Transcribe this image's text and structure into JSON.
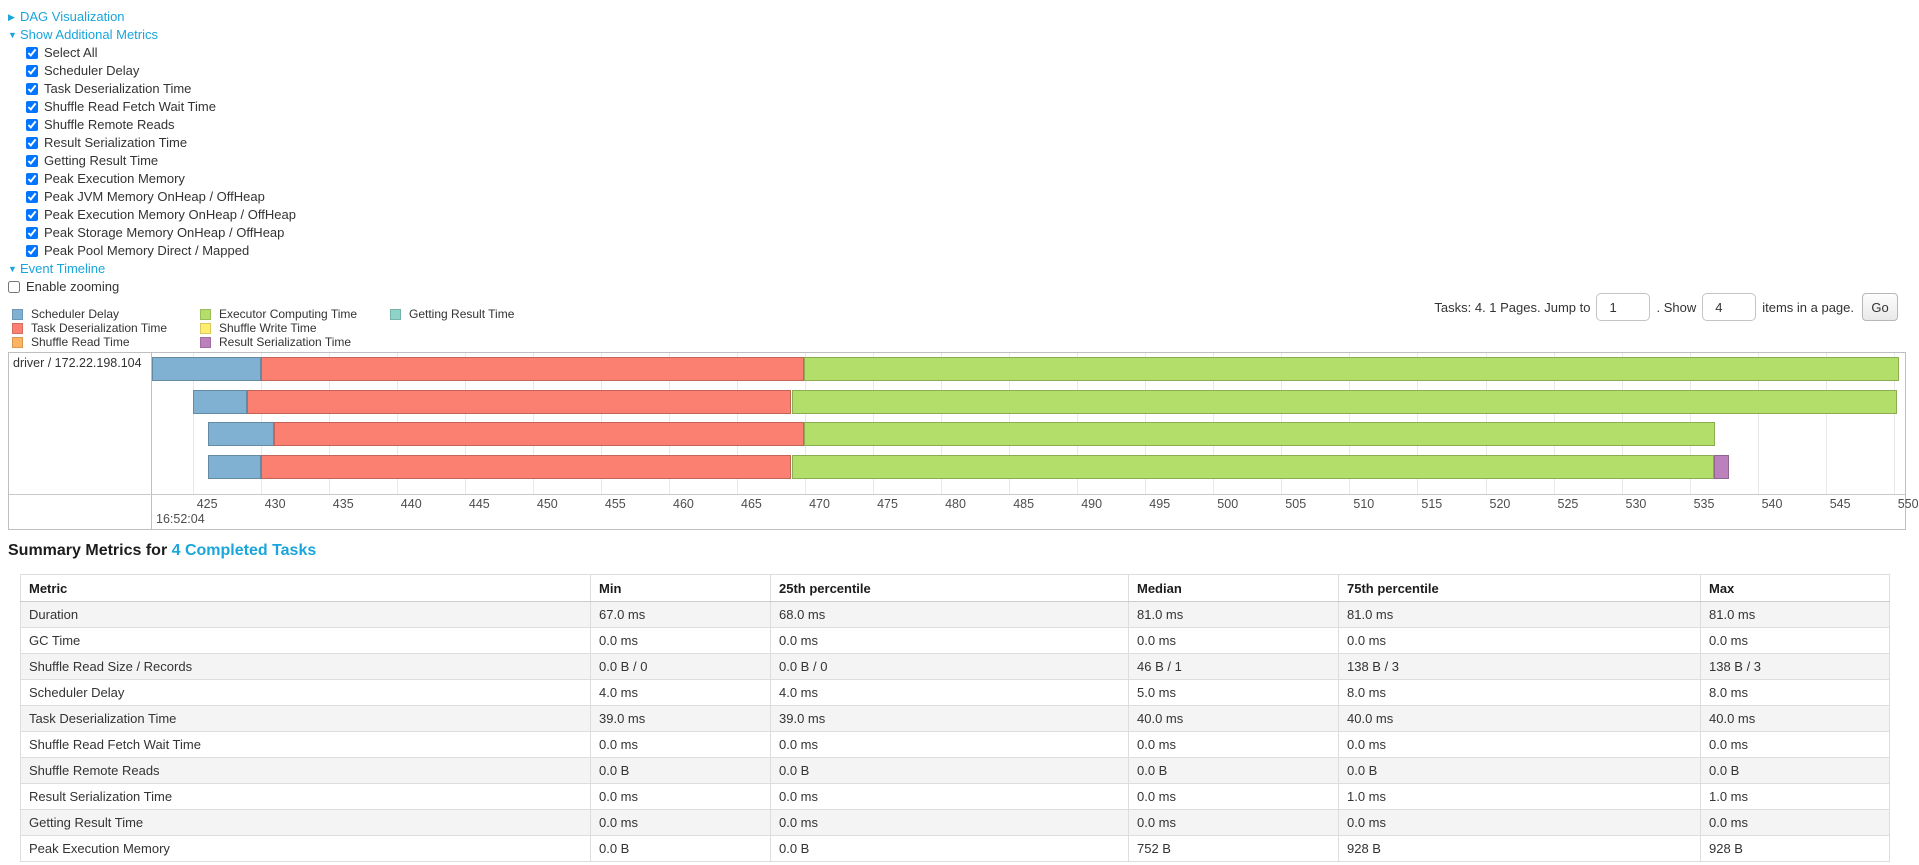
{
  "colors": {
    "link": "#1aa5dc",
    "scheduler_delay": "#80B1D3",
    "task_deserialization": "#FB8072",
    "shuffle_read": "#FDB462",
    "executor_computing": "#B3DE69",
    "shuffle_write": "#FFED6F",
    "result_serialization": "#BC80BD",
    "getting_result": "#8DD3C7"
  },
  "controls": {
    "dag": {
      "label": "DAG Visualization",
      "state": "collapsed"
    },
    "additional_metrics": {
      "label": "Show Additional Metrics",
      "state": "expanded"
    },
    "metric_checkboxes": [
      {
        "label": "Select All",
        "checked": true
      },
      {
        "label": "Scheduler Delay",
        "checked": true
      },
      {
        "label": "Task Deserialization Time",
        "checked": true
      },
      {
        "label": "Shuffle Read Fetch Wait Time",
        "checked": true
      },
      {
        "label": "Shuffle Remote Reads",
        "checked": true
      },
      {
        "label": "Result Serialization Time",
        "checked": true
      },
      {
        "label": "Getting Result Time",
        "checked": true
      },
      {
        "label": "Peak Execution Memory",
        "checked": true
      },
      {
        "label": "Peak JVM Memory OnHeap / OffHeap",
        "checked": true
      },
      {
        "label": "Peak Execution Memory OnHeap / OffHeap",
        "checked": true
      },
      {
        "label": "Peak Storage Memory OnHeap / OffHeap",
        "checked": true
      },
      {
        "label": "Peak Pool Memory Direct / Mapped",
        "checked": true
      }
    ],
    "event_timeline": {
      "label": "Event Timeline",
      "state": "expanded"
    },
    "enable_zooming": {
      "label": "Enable zooming",
      "checked": false
    }
  },
  "legend": {
    "columns": [
      [
        {
          "key": "scheduler_delay",
          "label": "Scheduler Delay"
        },
        {
          "key": "task_deserialization",
          "label": "Task Deserialization Time"
        },
        {
          "key": "shuffle_read",
          "label": "Shuffle Read Time"
        }
      ],
      [
        {
          "key": "executor_computing",
          "label": "Executor Computing Time"
        },
        {
          "key": "shuffle_write",
          "label": "Shuffle Write Time"
        },
        {
          "key": "result_serialization",
          "label": "Result Serialization Time"
        }
      ],
      [
        {
          "key": "getting_result",
          "label": "Getting Result Time"
        }
      ]
    ]
  },
  "pagination": {
    "tasks_label": "Tasks: 4. 1 Pages. Jump to",
    "jump_value": "1",
    "show_label": ". Show",
    "show_value": "4",
    "items_label": "items in a page.",
    "go_label": "Go"
  },
  "chart_data": {
    "type": "timeline",
    "title": "Event Timeline",
    "group_label": "driver / 172.22.198.104",
    "time_unit": "milliseconds within second 16:52:04",
    "axis": {
      "ticks": [
        425,
        430,
        435,
        440,
        445,
        450,
        455,
        460,
        465,
        470,
        475,
        480,
        485,
        490,
        495,
        500,
        505,
        510,
        515,
        520,
        525,
        530,
        535,
        540,
        545,
        550
      ],
      "tick_step_ms": 5,
      "major_label": "16:52:04",
      "visible_range_ms": [
        422,
        550.8
      ]
    },
    "tasks": [
      {
        "start": 422.0,
        "segments": [
          {
            "key": "scheduler_delay",
            "end": 430.0
          },
          {
            "key": "task_deserialization",
            "end": 469.9
          },
          {
            "key": "executor_computing",
            "end": 550.4
          }
        ]
      },
      {
        "start": 425.0,
        "segments": [
          {
            "key": "scheduler_delay",
            "end": 429.0
          },
          {
            "key": "task_deserialization",
            "end": 469.0
          },
          {
            "key": "executor_computing",
            "end": 550.2
          }
        ]
      },
      {
        "start": 426.1,
        "segments": [
          {
            "key": "scheduler_delay",
            "end": 431.0
          },
          {
            "key": "task_deserialization",
            "end": 469.9
          },
          {
            "key": "executor_computing",
            "end": 536.9
          }
        ]
      },
      {
        "start": 426.1,
        "segments": [
          {
            "key": "scheduler_delay",
            "end": 430.0
          },
          {
            "key": "task_deserialization",
            "end": 469.0
          },
          {
            "key": "executor_computing",
            "end": 536.8
          },
          {
            "key": "result_serialization",
            "end": 537.9
          }
        ]
      }
    ]
  },
  "summary": {
    "heading_prefix": "Summary Metrics for ",
    "heading_link": "4 Completed Tasks",
    "columns": [
      "Metric",
      "Min",
      "25th percentile",
      "Median",
      "75th percentile",
      "Max"
    ],
    "rows": [
      [
        "Duration",
        "67.0 ms",
        "68.0 ms",
        "81.0 ms",
        "81.0 ms",
        "81.0 ms"
      ],
      [
        "GC Time",
        "0.0 ms",
        "0.0 ms",
        "0.0 ms",
        "0.0 ms",
        "0.0 ms"
      ],
      [
        "Shuffle Read Size / Records",
        "0.0 B / 0",
        "0.0 B / 0",
        "46 B / 1",
        "138 B / 3",
        "138 B / 3"
      ],
      [
        "Scheduler Delay",
        "4.0 ms",
        "4.0 ms",
        "5.0 ms",
        "8.0 ms",
        "8.0 ms"
      ],
      [
        "Task Deserialization Time",
        "39.0 ms",
        "39.0 ms",
        "40.0 ms",
        "40.0 ms",
        "40.0 ms"
      ],
      [
        "Shuffle Read Fetch Wait Time",
        "0.0 ms",
        "0.0 ms",
        "0.0 ms",
        "0.0 ms",
        "0.0 ms"
      ],
      [
        "Shuffle Remote Reads",
        "0.0 B",
        "0.0 B",
        "0.0 B",
        "0.0 B",
        "0.0 B"
      ],
      [
        "Result Serialization Time",
        "0.0 ms",
        "0.0 ms",
        "0.0 ms",
        "1.0 ms",
        "1.0 ms"
      ],
      [
        "Getting Result Time",
        "0.0 ms",
        "0.0 ms",
        "0.0 ms",
        "0.0 ms",
        "0.0 ms"
      ],
      [
        "Peak Execution Memory",
        "0.0 B",
        "0.0 B",
        "752 B",
        "928 B",
        "928 B"
      ]
    ]
  }
}
